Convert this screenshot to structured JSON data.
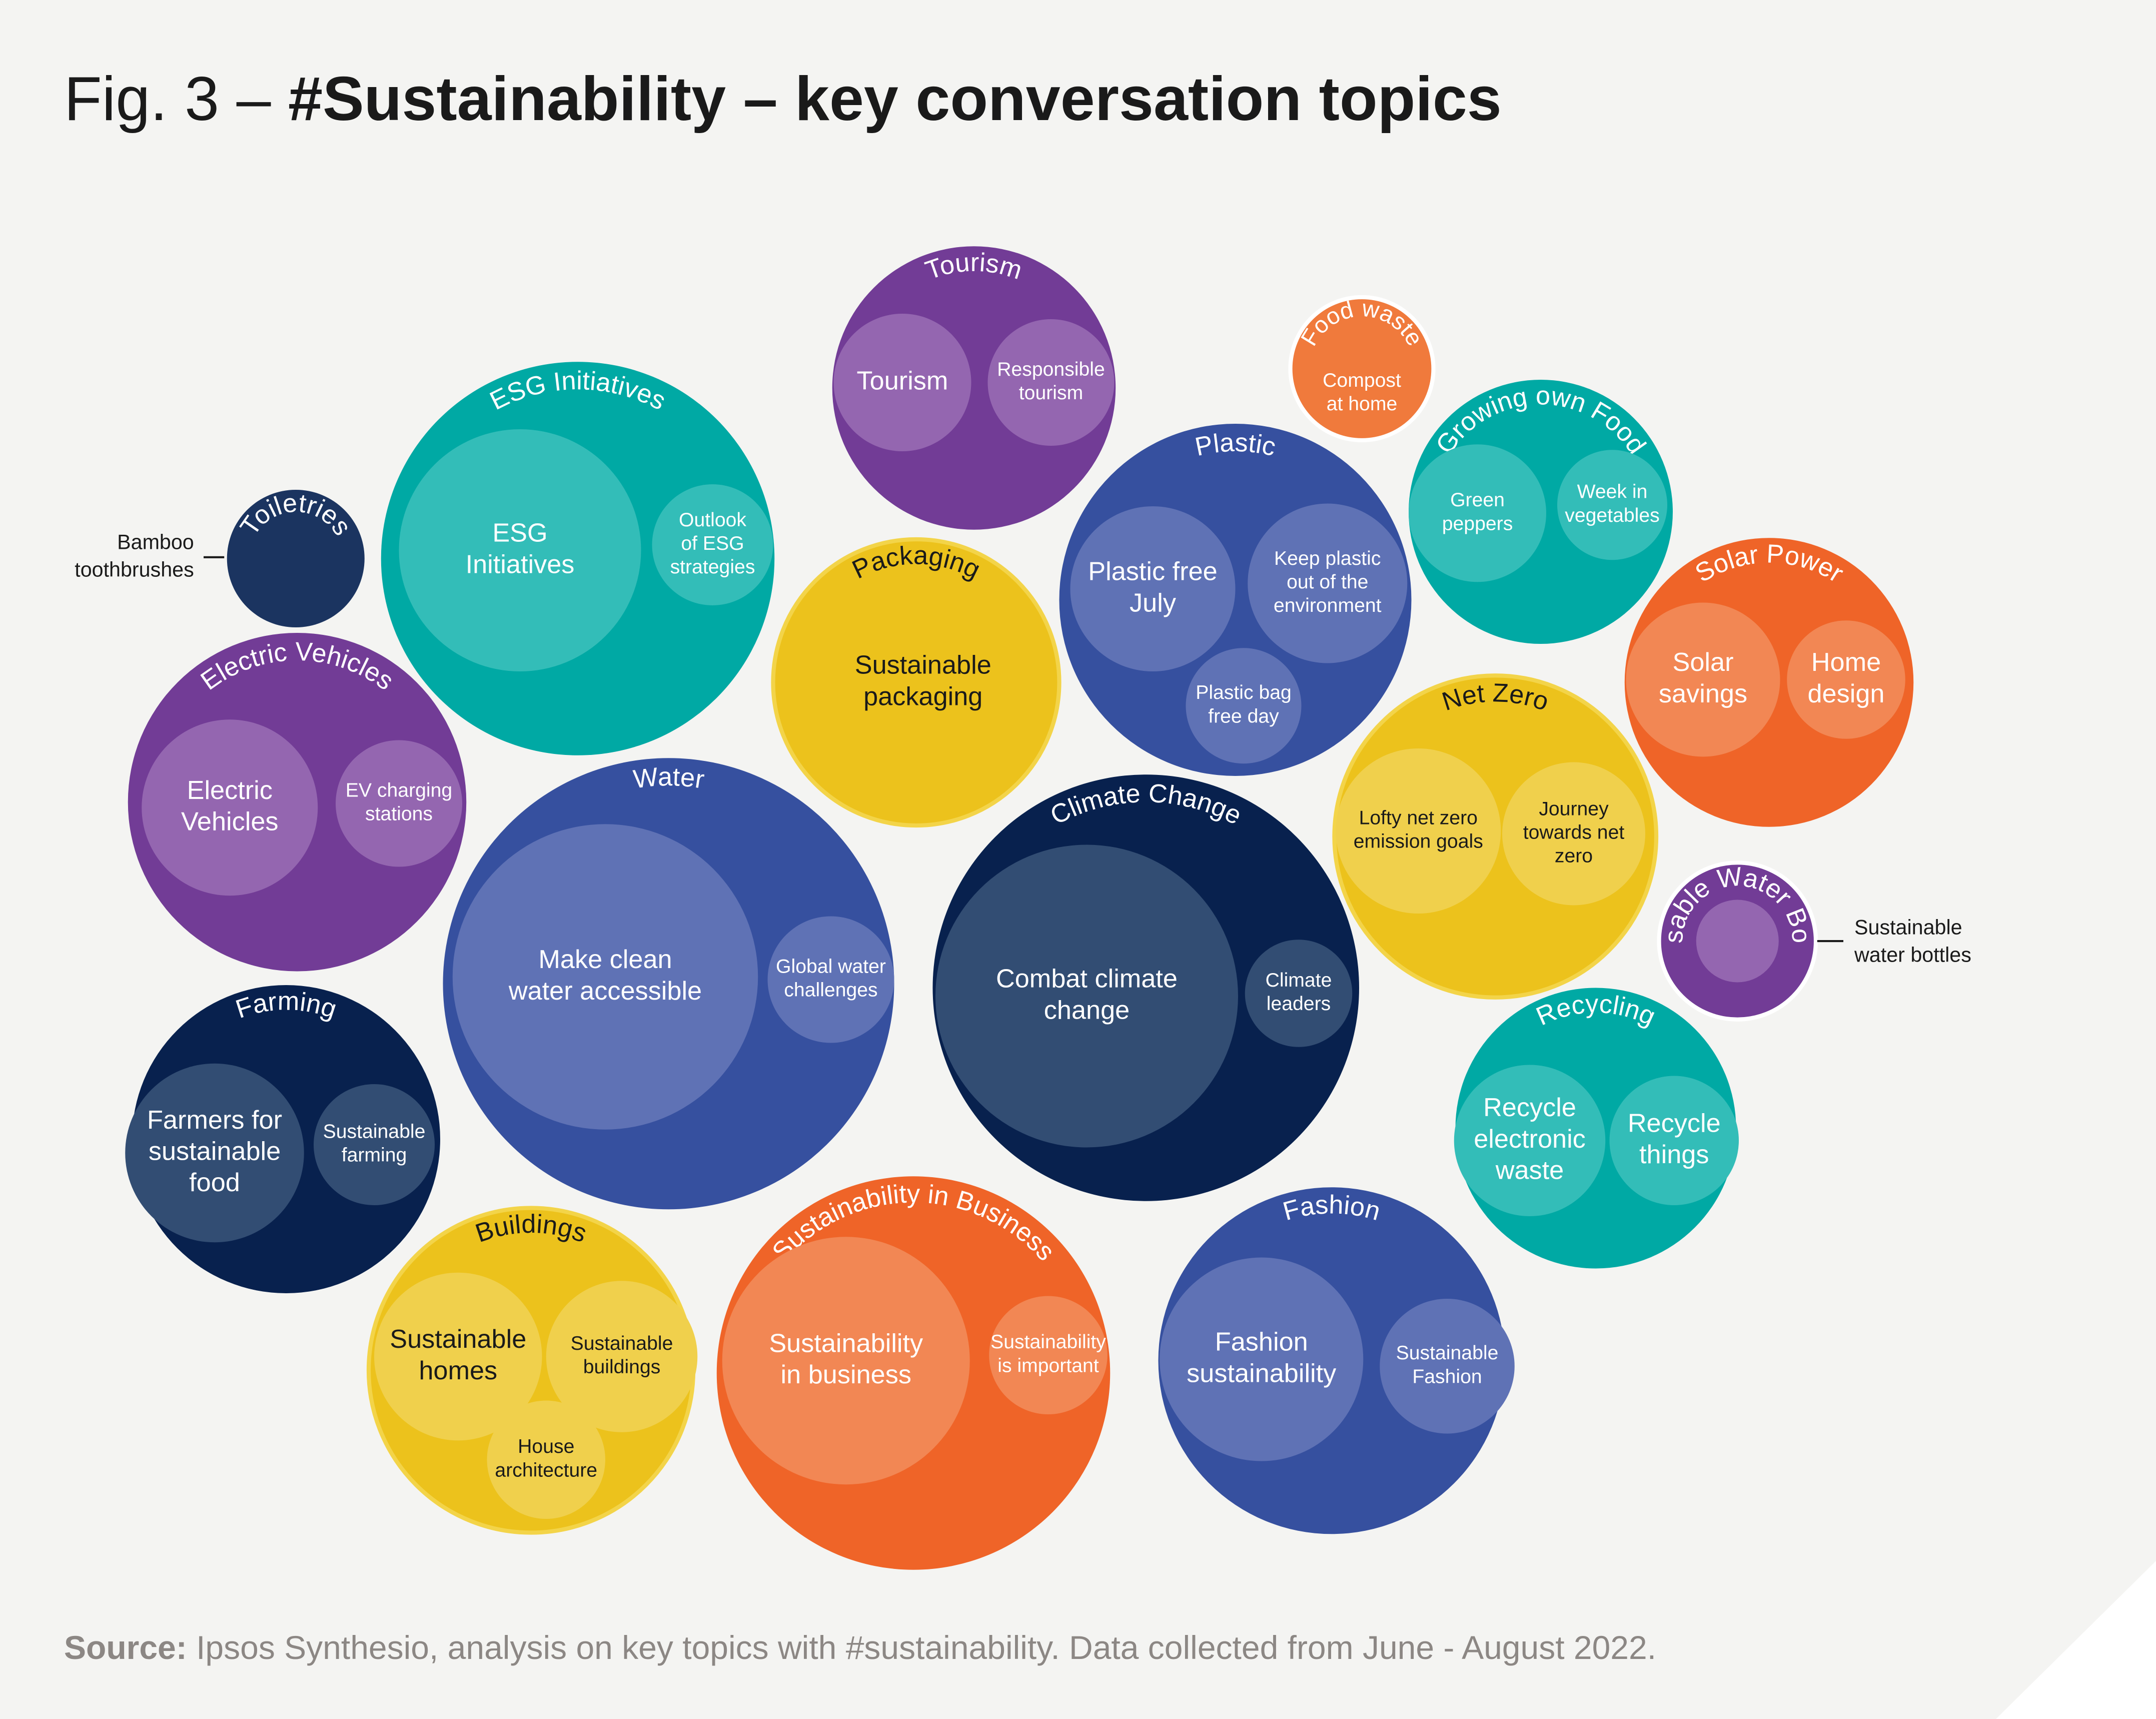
{
  "figure": {
    "title_prefix": "Fig. 3 – ",
    "title_main": "#Sustainability – key conversation topics",
    "source_label": "Source:",
    "source_text": " Ipsos Synthesio, analysis on key topics with #sustainability. Data collected from June - August 2022."
  },
  "colors": {
    "background": "#f4f4f2",
    "purple": "#723c96",
    "purple_light": "#9466b0",
    "teal": "#00a9a4",
    "teal_light": "#33bdb8",
    "navy": "#08214e",
    "navy_light": "#324d73",
    "dark_navy": "#1b3460",
    "blue": "#36509f",
    "blue_light": "#5f72b5",
    "yellow": "#ecc21c",
    "yellow_light": "#f0d04c",
    "orange": "#ef6428",
    "orange_light": "#f28754",
    "food_orange": "#f07a3c",
    "text_dark": "#1a1a1a",
    "text_gray": "#8c8784"
  },
  "topics": [
    {
      "id": "tourism",
      "label": "Tourism",
      "color": "purple",
      "subtopics": [
        {
          "label": [
            "Tourism"
          ]
        },
        {
          "label": [
            "Responsible",
            "tourism"
          ]
        }
      ]
    },
    {
      "id": "food-waste",
      "label": "Food waste",
      "color": "food_orange",
      "subtopics": [
        {
          "label": [
            "Compost",
            "at home"
          ]
        }
      ]
    },
    {
      "id": "esg-initiatives",
      "label": "ESG Initiatives",
      "color": "teal",
      "subtopics": [
        {
          "label": [
            "ESG",
            "Initiatives"
          ]
        },
        {
          "label": [
            "Outlook",
            "of ESG",
            "strategies"
          ]
        }
      ]
    },
    {
      "id": "plastic",
      "label": "Plastic",
      "color": "blue",
      "subtopics": [
        {
          "label": [
            "Plastic free",
            "July"
          ]
        },
        {
          "label": [
            "Keep plastic",
            "out of the",
            "environment"
          ]
        },
        {
          "label": [
            "Plastic bag",
            "free day"
          ]
        }
      ]
    },
    {
      "id": "growing-own-food",
      "label": "Growing own Food",
      "color": "teal",
      "subtopics": [
        {
          "label": [
            "Green",
            "peppers"
          ]
        },
        {
          "label": [
            "Week in",
            "vegetables"
          ]
        }
      ]
    },
    {
      "id": "toiletries",
      "label": "Toiletries",
      "color": "dark_navy",
      "subtopics": [],
      "callout": [
        "Bamboo",
        "toothbrushes"
      ]
    },
    {
      "id": "packaging",
      "label": "Packaging",
      "color": "yellow",
      "subtopics": [
        {
          "label": [
            "Sustainable",
            "packaging"
          ]
        }
      ]
    },
    {
      "id": "solar-power",
      "label": "Solar Power",
      "color": "orange",
      "subtopics": [
        {
          "label": [
            "Solar",
            "savings"
          ]
        },
        {
          "label": [
            "Home",
            "design"
          ]
        }
      ]
    },
    {
      "id": "electric-vehicles",
      "label": "Electric Vehicles",
      "color": "purple",
      "subtopics": [
        {
          "label": [
            "Electric",
            "Vehicles"
          ]
        },
        {
          "label": [
            "EV charging",
            "stations"
          ]
        }
      ]
    },
    {
      "id": "net-zero",
      "label": "Net Zero",
      "color": "yellow",
      "subtopics": [
        {
          "label": [
            "Lofty net zero",
            "emission goals"
          ]
        },
        {
          "label": [
            "Journey",
            "towards net",
            "zero"
          ]
        }
      ]
    },
    {
      "id": "water",
      "label": "Water",
      "color": "blue",
      "subtopics": [
        {
          "label": [
            "Make clean",
            "water accessible"
          ]
        },
        {
          "label": [
            "Global water",
            "challenges"
          ]
        }
      ]
    },
    {
      "id": "climate-change",
      "label": "Climate Change",
      "color": "navy",
      "subtopics": [
        {
          "label": [
            "Combat climate",
            "change"
          ]
        },
        {
          "label": [
            "Climate",
            "leaders"
          ]
        }
      ]
    },
    {
      "id": "reusable-water-bottles",
      "label": "Reusable Water Bottles",
      "color": "purple",
      "subtopics": [],
      "callout": [
        "Sustainable",
        "water bottles"
      ]
    },
    {
      "id": "farming",
      "label": "Farming",
      "color": "navy",
      "subtopics": [
        {
          "label": [
            "Farmers for",
            "sustainable",
            "food"
          ]
        },
        {
          "label": [
            "Sustainable",
            "farming"
          ]
        }
      ]
    },
    {
      "id": "recycling",
      "label": "Recycling",
      "color": "teal",
      "subtopics": [
        {
          "label": [
            "Recycle",
            "electronic",
            "waste"
          ]
        },
        {
          "label": [
            "Recycle",
            "things"
          ]
        }
      ]
    },
    {
      "id": "buildings",
      "label": "Buildings",
      "color": "yellow",
      "subtopics": [
        {
          "label": [
            "Sustainable",
            "homes"
          ]
        },
        {
          "label": [
            "Sustainable",
            "buildings"
          ]
        },
        {
          "label": [
            "House",
            "architecture"
          ]
        }
      ]
    },
    {
      "id": "sustainability-in-business",
      "label": "Sustainability in Business",
      "color": "orange",
      "subtopics": [
        {
          "label": [
            "Sustainability",
            "in business"
          ]
        },
        {
          "label": [
            "Sustainability",
            "is important"
          ]
        }
      ]
    },
    {
      "id": "fashion",
      "label": "Fashion",
      "color": "blue",
      "subtopics": [
        {
          "label": [
            "Fashion",
            "sustainability"
          ]
        },
        {
          "label": [
            "Sustainable",
            "Fashion"
          ]
        }
      ]
    }
  ]
}
